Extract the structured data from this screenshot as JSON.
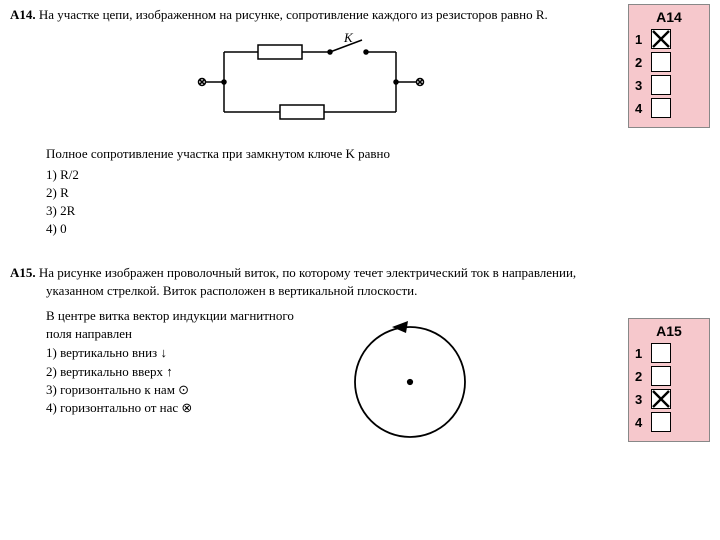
{
  "q14": {
    "num": "А14.",
    "text": "На участке цепи, изображенном на рисунке, сопротивление каждого из резисторов равно R.",
    "switch_label": "K",
    "after": "Полное сопротивление участка при замкнутом ключе K равно",
    "options": [
      "1) R/2",
      "2) R",
      "3) 2R",
      "4) 0"
    ]
  },
  "q15": {
    "num": "А15.",
    "text": "На рисунке изображен проволочный виток, по которому течет электрический ток в направлении, указанном стрелкой. Виток расположен в вертикальной плоскости.",
    "text2": "В центре витка вектор индукции магнитного поля направлен",
    "options": [
      "1) вертикально вниз ↓",
      "2) вертикально вверх ↑",
      "3) горизонтально к нам ⊙",
      "4) горизонтально от нас ⊗"
    ]
  },
  "ans14": {
    "title": "А14",
    "choices": [
      "1",
      "2",
      "3",
      "4"
    ],
    "selected": 0
  },
  "ans15": {
    "title": "А15",
    "choices": [
      "1",
      "2",
      "3",
      "4"
    ],
    "selected": 2
  }
}
